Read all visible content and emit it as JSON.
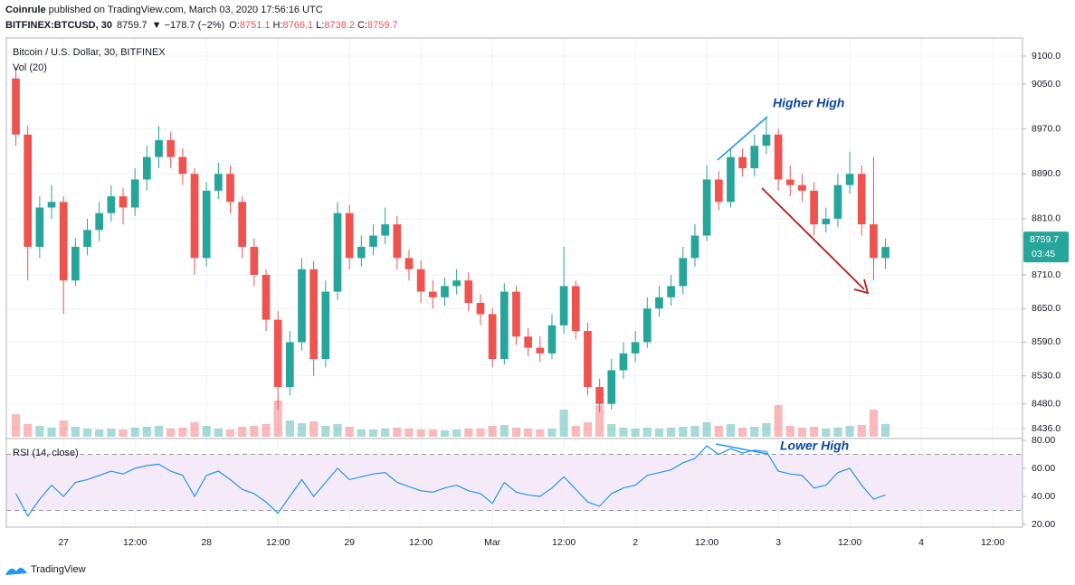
{
  "header": {
    "publisher": "Coinrule",
    "published": "published on TradingView.com, March 03, 2020 17:56:16 UTC",
    "symbol": "BITFINEX:BTCUSD, 30",
    "price": "8759.7",
    "change": "▼ −178.7 (−2%)",
    "ohlc": [
      {
        "label": "O:",
        "value": "8751.1"
      },
      {
        "label": "H:",
        "value": "8766.1"
      },
      {
        "label": "L:",
        "value": "8738.2"
      },
      {
        "label": "C:",
        "value": "8759.7"
      }
    ]
  },
  "footer": {
    "logo": "TradingView"
  },
  "chart_data": {
    "type": "candlestick",
    "title": "Bitcoin / U.S. Dollar, 30, BITFINEX",
    "grid": true,
    "up_color": "#26a69a",
    "down_color": "#ef5350",
    "x": [
      -8,
      -6,
      -4,
      -2,
      0,
      2,
      4,
      6,
      8,
      10,
      12,
      14,
      16,
      18,
      20,
      22,
      24,
      26,
      28,
      30,
      32,
      34,
      36,
      38,
      40,
      42,
      44,
      46,
      48,
      50,
      52,
      54,
      56,
      58,
      60,
      62,
      64,
      66,
      68,
      70,
      72,
      74,
      76,
      78,
      80,
      82,
      84,
      86,
      88,
      90,
      92,
      94,
      96,
      98,
      100,
      102,
      104,
      106,
      108,
      110,
      112,
      114,
      116,
      118,
      120,
      122,
      124,
      126,
      128,
      130,
      132,
      134,
      136,
      138
    ],
    "open": [
      9060,
      8960,
      8760,
      8830,
      8840,
      8700,
      8760,
      8790,
      8820,
      8850,
      8830,
      8880,
      8920,
      8950,
      8920,
      8890,
      8740,
      8860,
      8890,
      8840,
      8760,
      8710,
      8630,
      8510,
      8590,
      8720,
      8560,
      8680,
      8820,
      8740,
      8760,
      8780,
      8800,
      8740,
      8720,
      8680,
      8670,
      8690,
      8700,
      8660,
      8640,
      8560,
      8680,
      8600,
      8580,
      8570,
      8620,
      8690,
      8610,
      8510,
      8480,
      8540,
      8570,
      8590,
      8650,
      8670,
      8690,
      8740,
      8780,
      8880,
      8840,
      8920,
      8900,
      8940,
      8960,
      8880,
      8870,
      8860,
      8800,
      8810,
      8870,
      8890,
      8800,
      8740
    ],
    "high": [
      9080,
      8975,
      8850,
      8870,
      8850,
      8775,
      8810,
      8840,
      8870,
      8865,
      8900,
      8940,
      8975,
      8965,
      8935,
      8900,
      8875,
      8910,
      8905,
      8850,
      8775,
      8720,
      8645,
      8610,
      8740,
      8735,
      8700,
      8840,
      8835,
      8780,
      8800,
      8830,
      8815,
      8755,
      8735,
      8700,
      8705,
      8720,
      8715,
      8675,
      8650,
      8695,
      8690,
      8615,
      8600,
      8640,
      8760,
      8700,
      8625,
      8525,
      8560,
      8590,
      8610,
      8670,
      8690,
      8710,
      8760,
      8800,
      8905,
      8895,
      8935,
      8935,
      8960,
      8990,
      8970,
      8905,
      8890,
      8875,
      8830,
      8890,
      8930,
      8905,
      8920,
      8775
    ],
    "low": [
      8940,
      8700,
      8740,
      8810,
      8640,
      8690,
      8745,
      8770,
      8805,
      8800,
      8815,
      8860,
      8900,
      8900,
      8870,
      8710,
      8725,
      8845,
      8820,
      8740,
      8690,
      8610,
      8470,
      8495,
      8575,
      8530,
      8545,
      8665,
      8720,
      8725,
      8745,
      8765,
      8720,
      8700,
      8660,
      8650,
      8655,
      8675,
      8645,
      8620,
      8545,
      8550,
      8585,
      8565,
      8555,
      8560,
      8605,
      8595,
      8495,
      8465,
      8470,
      8525,
      8555,
      8580,
      8635,
      8655,
      8675,
      8725,
      8770,
      8825,
      8830,
      8885,
      8885,
      8925,
      8860,
      8850,
      8840,
      8780,
      8785,
      8795,
      8855,
      8780,
      8700,
      8720
    ],
    "close": [
      8960,
      8760,
      8830,
      8840,
      8700,
      8760,
      8790,
      8820,
      8850,
      8830,
      8880,
      8920,
      8950,
      8920,
      8890,
      8740,
      8860,
      8890,
      8840,
      8760,
      8710,
      8630,
      8510,
      8590,
      8720,
      8560,
      8680,
      8820,
      8740,
      8760,
      8780,
      8800,
      8740,
      8720,
      8680,
      8670,
      8690,
      8700,
      8660,
      8640,
      8560,
      8680,
      8600,
      8580,
      8570,
      8620,
      8690,
      8610,
      8510,
      8480,
      8540,
      8570,
      8590,
      8650,
      8670,
      8690,
      8740,
      8780,
      8880,
      8840,
      8920,
      8900,
      8940,
      8960,
      8880,
      8870,
      8860,
      8800,
      8810,
      8870,
      8890,
      8800,
      8740,
      8759.7
    ],
    "ylim": [
      8421.5,
      9132.2
    ],
    "yticks": [
      {
        "value": 9100,
        "label": "9100.0"
      },
      {
        "value": 9050,
        "label": "9050.0"
      },
      {
        "value": 8970,
        "label": "8970.0"
      },
      {
        "value": 8890,
        "label": "8890.0"
      },
      {
        "value": 8810,
        "label": "8810.0"
      },
      {
        "value": 8710,
        "label": "8710.0"
      },
      {
        "value": 8650,
        "label": "8650.0"
      },
      {
        "value": 8590,
        "label": "8590.0"
      },
      {
        "value": 8530,
        "label": "8530.0"
      },
      {
        "value": 8480,
        "label": "8480.0"
      },
      {
        "value": 8436,
        "label": "8436.0"
      }
    ],
    "xlim": [
      -9.6,
      161
    ],
    "xticks": [
      {
        "value": 0,
        "label": "27"
      },
      {
        "value": 12,
        "label": "12:00"
      },
      {
        "value": 24,
        "label": "28"
      },
      {
        "value": 36,
        "label": "12:00"
      },
      {
        "value": 48,
        "label": "29"
      },
      {
        "value": 60,
        "label": "12:00"
      },
      {
        "value": 72,
        "label": "Mar"
      },
      {
        "value": 84,
        "label": "12:00"
      },
      {
        "value": 96,
        "label": "2"
      },
      {
        "value": 108,
        "label": "12:00"
      },
      {
        "value": 120,
        "label": "3"
      },
      {
        "value": 132,
        "label": "12:00"
      },
      {
        "value": 144,
        "label": "4"
      },
      {
        "value": 156,
        "label": "12:00"
      }
    ],
    "last_price": 8759.7,
    "countdown": "03:45",
    "volume": {
      "name": "Vol (20)",
      "values": [
        25,
        14,
        12,
        10,
        18,
        11,
        9,
        8,
        9,
        8,
        10,
        11,
        12,
        9,
        10,
        16,
        12,
        9,
        8,
        11,
        12,
        14,
        40,
        18,
        15,
        17,
        12,
        14,
        11,
        8,
        8,
        9,
        10,
        9,
        8,
        8,
        7,
        8,
        9,
        9,
        12,
        13,
        10,
        9,
        8,
        9,
        30,
        12,
        16,
        35,
        14,
        10,
        9,
        10,
        9,
        10,
        11,
        12,
        16,
        12,
        14,
        10,
        11,
        15,
        35,
        12,
        10,
        11,
        9,
        10,
        12,
        13,
        30,
        14
      ]
    },
    "rsi": {
      "name": "RSI (14, close)",
      "color": "#2196f3",
      "ylim": [
        20,
        80
      ],
      "bands": [
        30,
        70
      ],
      "yticks": [
        {
          "value": 80,
          "label": "80.00"
        },
        {
          "value": 60,
          "label": "60.00"
        },
        {
          "value": 40,
          "label": "40.00"
        },
        {
          "value": 20,
          "label": "20.00"
        }
      ],
      "values": [
        42,
        26,
        38,
        48,
        40,
        50,
        52,
        55,
        58,
        56,
        60,
        62,
        63,
        58,
        55,
        40,
        55,
        58,
        52,
        45,
        42,
        36,
        28,
        40,
        52,
        40,
        50,
        60,
        52,
        54,
        56,
        57,
        50,
        47,
        44,
        43,
        46,
        48,
        44,
        42,
        35,
        50,
        43,
        41,
        40,
        46,
        54,
        45,
        36,
        33,
        42,
        46,
        48,
        55,
        57,
        59,
        64,
        67,
        76,
        70,
        74,
        71,
        73,
        72,
        58,
        56,
        55,
        46,
        48,
        57,
        60,
        48,
        38,
        41
      ]
    },
    "annotations": [
      "Higher High",
      "Lower High"
    ]
  }
}
